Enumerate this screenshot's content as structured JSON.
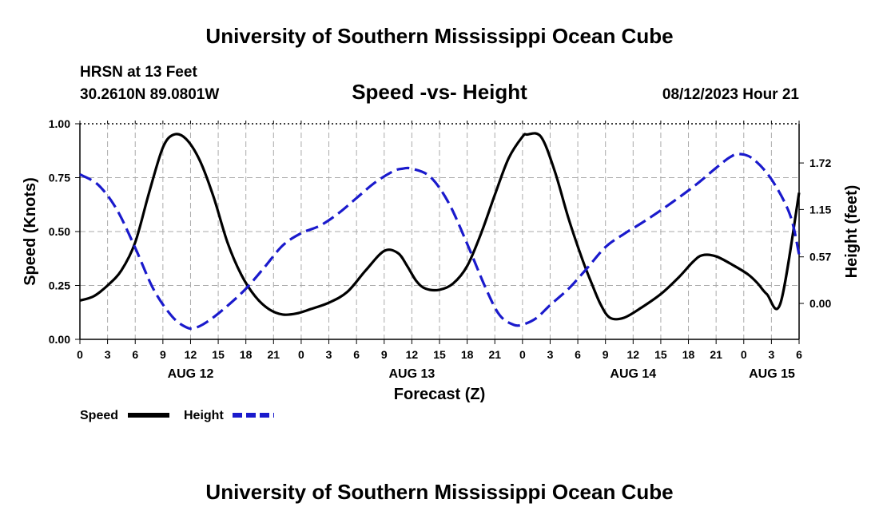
{
  "header": {
    "title": "University of Southern Mississippi Ocean Cube",
    "station": "HRSN at 13 Feet",
    "coordinates": "30.2610N  89.0801W",
    "chart_title": "Speed -vs- Height",
    "datetime": "08/12/2023 Hour 21"
  },
  "footer": {
    "title": "University of Southern Mississippi Ocean Cube"
  },
  "chart_data": {
    "type": "line",
    "title": "Speed -vs- Height",
    "xlabel": "Forecast (Z)",
    "ylabel": "Speed (Knots)",
    "ylabel_right": "Height (feet)",
    "x_range_hours": [
      0,
      78
    ],
    "x_tick_step_hours": 3,
    "x_tick_labels": [
      "0",
      "3",
      "6",
      "9",
      "12",
      "15",
      "18",
      "21",
      "0",
      "3",
      "6",
      "9",
      "12",
      "15",
      "18",
      "21",
      "0",
      "3",
      "6",
      "9",
      "12",
      "15",
      "18",
      "21",
      "0",
      "3",
      "6"
    ],
    "date_labels": [
      {
        "hour": 12,
        "label": "AUG 12"
      },
      {
        "hour": 36,
        "label": "AUG 13"
      },
      {
        "hour": 60,
        "label": "AUG 14"
      },
      {
        "hour": 78,
        "label": "AUG 15"
      }
    ],
    "ylim_left": [
      0,
      1
    ],
    "y_left_ticks": [
      {
        "value": 0.0,
        "label": "0.00"
      },
      {
        "value": 0.25,
        "label": "0.25"
      },
      {
        "value": 0.5,
        "label": "0.50"
      },
      {
        "value": 0.75,
        "label": "0.75"
      },
      {
        "value": 1.0,
        "label": "1.00"
      }
    ],
    "ylim_right": [
      -0.44,
      2.2
    ],
    "y_right_ticks": [
      {
        "value": 0.0,
        "label": "0.00"
      },
      {
        "value": 0.57,
        "label": "0.57"
      },
      {
        "value": 1.15,
        "label": "1.15"
      },
      {
        "value": 1.72,
        "label": "1.72"
      }
    ],
    "grid": true,
    "series": [
      {
        "name": "Speed",
        "axis": "left",
        "color": "#000000",
        "style": "solid",
        "x": [
          0,
          1.5,
          3,
          4.5,
          6,
          7.5,
          9,
          10.2,
          11.5,
          13,
          14.5,
          16,
          17.5,
          19,
          20.5,
          22,
          23.5,
          25,
          27,
          29,
          31,
          33,
          34.5,
          35.5,
          36.5,
          37.5,
          39,
          40.5,
          42,
          43.5,
          45,
          46.5,
          48,
          48.5,
          50,
          51.5,
          53,
          54.5,
          55.5,
          56.5,
          57.5,
          59,
          61,
          63,
          65,
          66.5,
          67.5,
          69,
          71,
          72.5,
          73.5,
          74.5,
          76,
          78
        ],
        "y": [
          0.18,
          0.2,
          0.25,
          0.32,
          0.45,
          0.68,
          0.89,
          0.95,
          0.93,
          0.83,
          0.66,
          0.45,
          0.3,
          0.2,
          0.14,
          0.115,
          0.12,
          0.14,
          0.17,
          0.22,
          0.32,
          0.41,
          0.4,
          0.34,
          0.27,
          0.235,
          0.23,
          0.26,
          0.34,
          0.49,
          0.67,
          0.84,
          0.94,
          0.95,
          0.94,
          0.78,
          0.56,
          0.37,
          0.26,
          0.16,
          0.1,
          0.1,
          0.15,
          0.21,
          0.29,
          0.36,
          0.39,
          0.385,
          0.34,
          0.3,
          0.26,
          0.21,
          0.17,
          0.68
        ]
      },
      {
        "name": "Height",
        "axis": "right",
        "color": "#1a1acc",
        "style": "dashed",
        "x": [
          0,
          2,
          4,
          6,
          8,
          10,
          11.5,
          12.5,
          14,
          16,
          18,
          20,
          22,
          24,
          26,
          28,
          30,
          32,
          34,
          35,
          36,
          38,
          40,
          42,
          44,
          45.5,
          47,
          48,
          49.5,
          51,
          53,
          55,
          57,
          59,
          61,
          63,
          65,
          67,
          69,
          70.5,
          71.5,
          73,
          75,
          77,
          78
        ],
        "y": [
          1.58,
          1.45,
          1.15,
          0.68,
          0.17,
          -0.16,
          -0.29,
          -0.3,
          -0.21,
          -0.03,
          0.18,
          0.44,
          0.71,
          0.86,
          0.95,
          1.1,
          1.29,
          1.48,
          1.62,
          1.65,
          1.65,
          1.55,
          1.23,
          0.73,
          0.19,
          -0.14,
          -0.26,
          -0.26,
          -0.18,
          -0.02,
          0.18,
          0.43,
          0.69,
          0.85,
          0.99,
          1.14,
          1.3,
          1.47,
          1.66,
          1.79,
          1.83,
          1.77,
          1.52,
          1.09,
          0.6
        ]
      }
    ],
    "legend": [
      {
        "label": "Speed",
        "color": "#000000",
        "style": "solid"
      },
      {
        "label": "Height",
        "color": "#1a1acc",
        "style": "dashed"
      }
    ]
  }
}
